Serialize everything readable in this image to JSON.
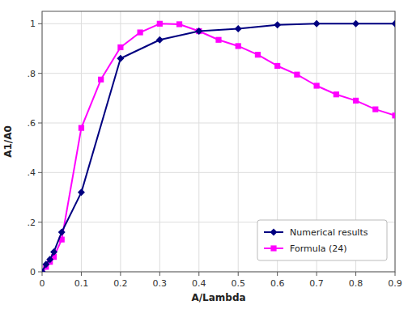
{
  "chart_data": {
    "type": "line",
    "xlabel": "A/Lambda",
    "ylabel": "A1/A0",
    "series": [
      {
        "name": "Numerical results",
        "color": "#000080",
        "marker": "diamond",
        "x": [
          0.0,
          0.01,
          0.02,
          0.03,
          0.05,
          0.1,
          0.2,
          0.3,
          0.4,
          0.5,
          0.6,
          0.7,
          0.8,
          0.9
        ],
        "values": [
          0.0,
          0.03,
          0.05,
          0.08,
          0.16,
          0.32,
          0.86,
          0.935,
          0.97,
          0.98,
          0.995,
          1.0,
          1.0,
          1.0
        ]
      },
      {
        "name": "Formula (24)",
        "color": "#FF00FF",
        "marker": "square",
        "x": [
          0.0,
          0.01,
          0.02,
          0.03,
          0.05,
          0.1,
          0.15,
          0.2,
          0.25,
          0.3,
          0.35,
          0.4,
          0.45,
          0.5,
          0.55,
          0.6,
          0.65,
          0.7,
          0.75,
          0.8,
          0.85,
          0.9
        ],
        "values": [
          0.0,
          0.02,
          0.04,
          0.06,
          0.13,
          0.58,
          0.775,
          0.905,
          0.965,
          1.0,
          0.998,
          0.97,
          0.935,
          0.91,
          0.875,
          0.83,
          0.795,
          0.75,
          0.715,
          0.69,
          0.655,
          0.63
        ]
      }
    ],
    "xlim": [
      0.0,
      0.9
    ],
    "ylim": [
      0.0,
      1.05
    ],
    "xticks": [
      0,
      0.1,
      0.2,
      0.3,
      0.4,
      0.5,
      0.6,
      0.7,
      0.8,
      0.9
    ],
    "yticks": [
      0,
      {
        "value": 0.2,
        "label": ".2"
      },
      {
        "value": 0.4,
        "label": ".4"
      },
      {
        "value": 0.6,
        "label": ".6"
      },
      {
        "value": 0.8,
        "label": ".8"
      },
      1
    ],
    "grid": true,
    "legend": "lower right"
  }
}
